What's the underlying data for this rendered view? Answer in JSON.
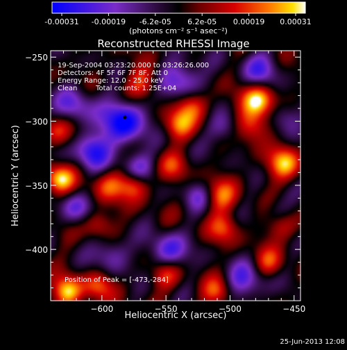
{
  "chart_data": {
    "type": "heatmap",
    "title": "Reconstructed RHESSI Image",
    "xlabel": "Heliocentric X (arcsec)",
    "ylabel": "Heliocentric Y (arcsec)",
    "xlim": [
      -640,
      -445
    ],
    "ylim": [
      -440,
      -245
    ],
    "x_ticks": [
      -600,
      -550,
      -500,
      -450
    ],
    "x_tick_labels": [
      "−600",
      "−550",
      "−500",
      "−450"
    ],
    "y_ticks": [
      -250,
      -300,
      -350,
      -400
    ],
    "y_tick_labels": [
      "−250",
      "−300",
      "−350",
      "−400"
    ],
    "colorbar": {
      "min": -0.00031,
      "max": 0.00031,
      "tick_labels": [
        "-0.00031",
        "-0.00019",
        "-6.2e-05",
        "6.2e-05",
        "0.00019",
        "0.00031"
      ],
      "unit_label": "(photons cm⁻² s⁻¹ asec⁻²)",
      "colormap": "blue-purple-black-red-yellow-white"
    },
    "annotations": {
      "time_range": "19-Sep-2004 03:23:20.000 to 03:26:26.000",
      "detectors": "Detectors: 4F 5F 6F 7F 8F, Att 0",
      "energy": "Energy Range: 12.0 - 25.0 keV",
      "method": "Clean",
      "total_counts": "Total counts: 1.25E+04",
      "peak": "Position of Peak = [-473,-284]"
    },
    "peak_position": [
      -473,
      -284
    ],
    "marker_position": [
      -582,
      -297
    ],
    "grid": false,
    "blobs": [
      {
        "x": -583,
        "y": -300,
        "v": -1.0,
        "s": 12
      },
      {
        "x": -607,
        "y": -323,
        "v": -0.85,
        "s": 10
      },
      {
        "x": -573,
        "y": -336,
        "v": -0.6,
        "s": 9
      },
      {
        "x": -621,
        "y": -287,
        "v": -0.6,
        "s": 10
      },
      {
        "x": -538,
        "y": -268,
        "v": -0.75,
        "s": 11
      },
      {
        "x": -548,
        "y": -401,
        "v": -0.7,
        "s": 10
      },
      {
        "x": -477,
        "y": -260,
        "v": -0.6,
        "s": 10
      },
      {
        "x": -458,
        "y": -296,
        "v": -0.5,
        "s": 9
      },
      {
        "x": -503,
        "y": -306,
        "v": -0.5,
        "s": 9
      },
      {
        "x": -488,
        "y": -425,
        "v": -0.6,
        "s": 11
      },
      {
        "x": -593,
        "y": -403,
        "v": -0.5,
        "s": 10
      },
      {
        "x": -620,
        "y": -368,
        "v": -0.55,
        "s": 9
      },
      {
        "x": -525,
        "y": -358,
        "v": -0.45,
        "s": 8
      },
      {
        "x": -462,
        "y": -372,
        "v": -0.45,
        "s": 9
      },
      {
        "x": -478,
        "y": -284,
        "v": 1.0,
        "s": 9
      },
      {
        "x": -483,
        "y": -303,
        "v": 0.7,
        "s": 9
      },
      {
        "x": -633,
        "y": -345,
        "v": 0.9,
        "s": 8
      },
      {
        "x": -627,
        "y": -433,
        "v": 0.9,
        "s": 8
      },
      {
        "x": -458,
        "y": -333,
        "v": 0.8,
        "s": 9
      },
      {
        "x": -460,
        "y": -380,
        "v": 0.6,
        "s": 9
      },
      {
        "x": -530,
        "y": -288,
        "v": 0.7,
        "s": 9
      },
      {
        "x": -540,
        "y": -303,
        "v": 0.6,
        "s": 8
      },
      {
        "x": -568,
        "y": -270,
        "v": 0.55,
        "s": 9
      },
      {
        "x": -575,
        "y": -350,
        "v": 0.7,
        "s": 8
      },
      {
        "x": -595,
        "y": -350,
        "v": 0.55,
        "s": 9
      },
      {
        "x": -603,
        "y": -380,
        "v": 0.5,
        "s": 8
      },
      {
        "x": -603,
        "y": -428,
        "v": 0.6,
        "s": 8
      },
      {
        "x": -507,
        "y": -358,
        "v": 0.6,
        "s": 9
      },
      {
        "x": -505,
        "y": -383,
        "v": 0.55,
        "s": 8
      },
      {
        "x": -550,
        "y": -420,
        "v": 0.5,
        "s": 8
      },
      {
        "x": -510,
        "y": -433,
        "v": 0.55,
        "s": 8
      },
      {
        "x": -635,
        "y": -308,
        "v": 0.5,
        "s": 8
      },
      {
        "x": -545,
        "y": -335,
        "v": 0.45,
        "s": 8
      },
      {
        "x": -470,
        "y": -410,
        "v": 0.5,
        "s": 8
      }
    ]
  },
  "footer": {
    "timestamp": "25-Jun-2013 12:08"
  }
}
